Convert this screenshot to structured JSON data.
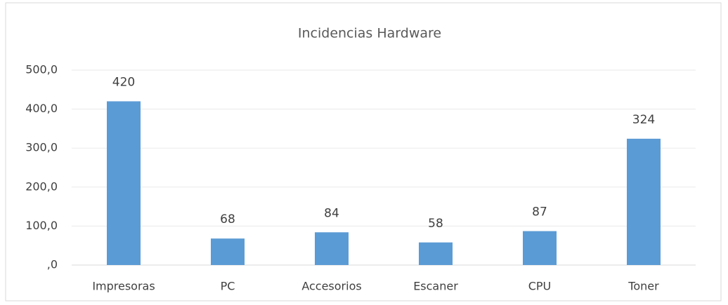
{
  "chart_data": {
    "type": "bar",
    "title": "Incidencias Hardware",
    "categories": [
      "Impresoras",
      "PC",
      "Accesorios",
      "Escaner",
      "CPU",
      "Toner"
    ],
    "values": [
      420,
      68,
      84,
      58,
      87,
      324
    ],
    "color": "#5b9bd5",
    "ylim": [
      0,
      500
    ],
    "yticks": [
      {
        "value": 0,
        "label": ",0"
      },
      {
        "value": 100,
        "label": "100,0"
      },
      {
        "value": 200,
        "label": "200,0"
      },
      {
        "value": 300,
        "label": "300,0"
      },
      {
        "value": 400,
        "label": "400,0"
      },
      {
        "value": 500,
        "label": "500,0"
      }
    ],
    "grid": true
  }
}
